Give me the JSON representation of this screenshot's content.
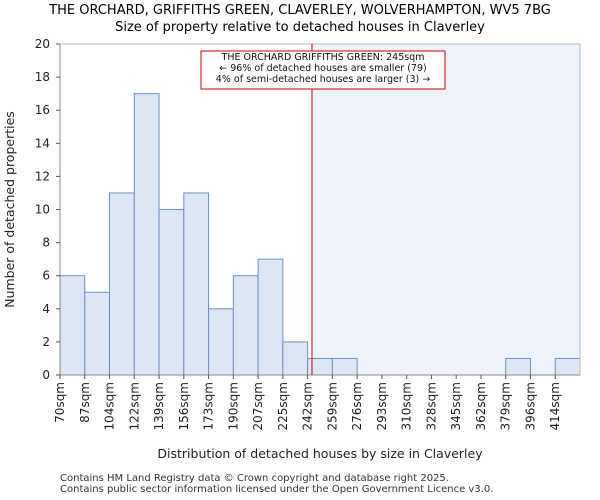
{
  "chart_data": {
    "type": "bar",
    "title": "THE ORCHARD, GRIFFITHS GREEN, CLAVERLEY, WOLVERHAMPTON, WV5 7BG",
    "subtitle": "Size of property relative to detached houses in Claverley",
    "xlabel": "Distribution of detached houses by size in Claverley",
    "ylabel": "Number of detached properties",
    "categories": [
      "70sqm",
      "87sqm",
      "104sqm",
      "122sqm",
      "139sqm",
      "156sqm",
      "173sqm",
      "190sqm",
      "207sqm",
      "225sqm",
      "242sqm",
      "259sqm",
      "276sqm",
      "293sqm",
      "310sqm",
      "328sqm",
      "345sqm",
      "362sqm",
      "379sqm",
      "396sqm",
      "414sqm"
    ],
    "values": [
      6,
      5,
      11,
      17,
      10,
      11,
      4,
      6,
      7,
      2,
      1,
      1,
      0,
      0,
      0,
      0,
      0,
      0,
      1,
      0,
      1
    ],
    "ylim": [
      0,
      20
    ],
    "yticks": [
      0,
      2,
      4,
      6,
      8,
      10,
      12,
      14,
      16,
      18,
      20
    ],
    "marker_value_sqm": 245,
    "annotation": [
      "THE ORCHARD GRIFFITHS GREEN: 245sqm",
      "← 96% of detached houses are smaller (79)",
      "4% of semi-detached houses are larger (3) →"
    ],
    "colors": {
      "bar_fill": "#dce6f5",
      "bar_edge": "#6f8fc7",
      "marker_line": "#cc0000",
      "highlight_fill": "#eef2fb",
      "annotation_border": "#cc0000"
    }
  },
  "footer": {
    "line1": "Contains HM Land Registry data © Crown copyright and database right 2025.",
    "line2": "Contains public sector information licensed under the Open Government Licence v3.0."
  }
}
